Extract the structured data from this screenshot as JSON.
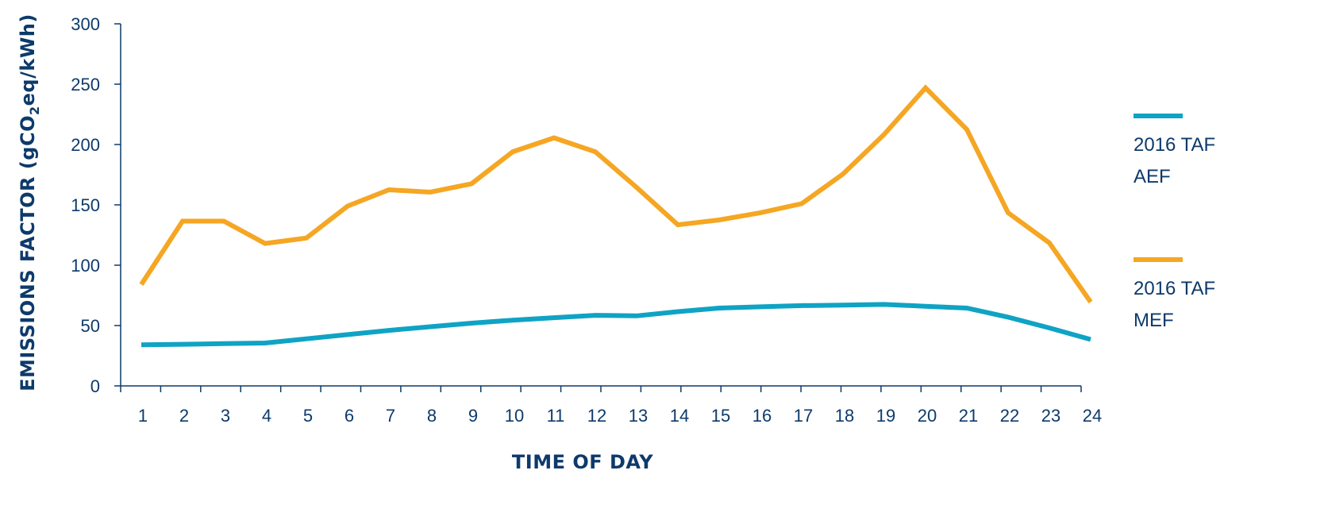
{
  "chart_data": {
    "type": "line",
    "xlabel": "TIME OF DAY",
    "ylabel_parts": [
      "EMISSIONS FACTOR (gCO",
      "2",
      "eq/kWh)"
    ],
    "x": [
      1,
      2,
      3,
      4,
      5,
      6,
      7,
      8,
      9,
      10,
      11,
      12,
      13,
      14,
      15,
      16,
      17,
      18,
      19,
      20,
      21,
      22,
      23,
      24
    ],
    "ylim": [
      0,
      300
    ],
    "yticks": [
      0,
      50,
      100,
      150,
      200,
      250,
      300
    ],
    "grid": false,
    "legend_position": "right",
    "series": [
      {
        "name_lines": [
          "2016 TAF",
          "AEF"
        ],
        "color": "#0fa3c4",
        "values": [
          34,
          34.5,
          35,
          35.5,
          39,
          42.5,
          46,
          49,
          52,
          54.5,
          56.5,
          58.5,
          58,
          61.5,
          64.5,
          65.5,
          66.5,
          67,
          67.5,
          66,
          64.5,
          57,
          48,
          38.5
        ]
      },
      {
        "name_lines": [
          "2016 TAF",
          "MEF"
        ],
        "color": "#f5a623",
        "values": [
          84,
          136.5,
          136.5,
          118,
          122.5,
          149,
          162.5,
          160.5,
          167.5,
          194,
          205.5,
          194,
          164.5,
          133.5,
          137.5,
          143.5,
          151,
          175.5,
          208.5,
          247,
          212.5,
          143.5,
          118.5,
          69.5
        ]
      }
    ]
  },
  "colors": {
    "text": "#0d3a6b",
    "axis": "#0d3a6b"
  }
}
